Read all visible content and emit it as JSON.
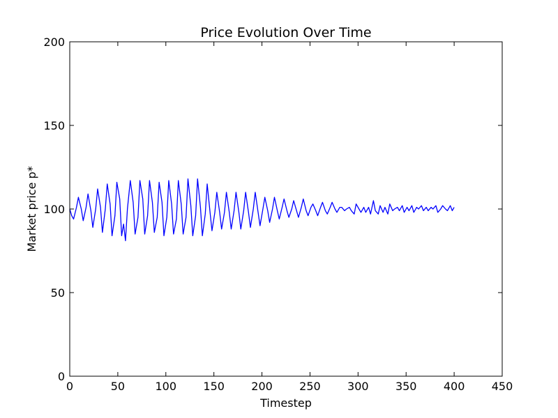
{
  "chart_data": {
    "type": "line",
    "title": "Price Evolution Over Time",
    "xlabel": "Timestep",
    "ylabel": "Market price p*",
    "xlim": [
      0,
      450
    ],
    "ylim": [
      0,
      200
    ],
    "xticks": [
      0,
      50,
      100,
      150,
      200,
      250,
      300,
      350,
      400,
      450
    ],
    "yticks": [
      0,
      50,
      100,
      150,
      200
    ],
    "grid": false,
    "legend": "none",
    "series": [
      {
        "color": "#0000ff",
        "x": [
          0,
          2,
          4,
          7,
          9,
          12,
          14,
          17,
          19,
          22,
          24,
          27,
          29,
          32,
          34,
          37,
          39,
          42,
          44,
          47,
          49,
          52,
          54,
          56,
          58,
          60,
          63,
          66,
          68,
          71,
          73,
          76,
          78,
          81,
          83,
          86,
          88,
          91,
          93,
          96,
          98,
          101,
          103,
          106,
          108,
          111,
          113,
          116,
          118,
          121,
          123,
          126,
          128,
          131,
          133,
          136,
          138,
          141,
          143,
          146,
          148,
          151,
          153,
          156,
          158,
          161,
          163,
          166,
          168,
          171,
          173,
          176,
          178,
          181,
          183,
          186,
          188,
          191,
          193,
          196,
          198,
          201,
          203,
          206,
          208,
          211,
          213,
          216,
          218,
          221,
          223,
          226,
          228,
          231,
          233,
          236,
          238,
          241,
          243,
          246,
          248,
          251,
          253,
          256,
          258,
          261,
          263,
          266,
          268,
          271,
          273,
          276,
          278,
          281,
          283,
          286,
          288,
          291,
          293,
          296,
          298,
          301,
          303,
          306,
          308,
          311,
          313,
          316,
          318,
          321,
          323,
          326,
          328,
          331,
          333,
          336,
          338,
          341,
          343,
          346,
          348,
          351,
          353,
          356,
          358,
          361,
          363,
          366,
          368,
          371,
          373,
          376,
          378,
          381,
          383,
          386,
          388,
          391,
          393,
          396,
          398,
          400
        ],
        "y": [
          100,
          96,
          94,
          101,
          107,
          100,
          93,
          101,
          109,
          99,
          89,
          100,
          112,
          101,
          86,
          100,
          115,
          103,
          84,
          96,
          116,
          106,
          84,
          91,
          81,
          100,
          117,
          104,
          85,
          95,
          117,
          106,
          85,
          96,
          117,
          104,
          86,
          95,
          116,
          104,
          84,
          95,
          117,
          103,
          85,
          94,
          117,
          103,
          85,
          95,
          118,
          102,
          84,
          96,
          118,
          101,
          84,
          97,
          115,
          98,
          87,
          98,
          110,
          98,
          88,
          98,
          110,
          98,
          88,
          99,
          110,
          98,
          88,
          99,
          110,
          98,
          89,
          100,
          110,
          98,
          90,
          100,
          107,
          99,
          92,
          100,
          107,
          99,
          94,
          101,
          106,
          99,
          95,
          100,
          105,
          99,
          95,
          101,
          106,
          99,
          96,
          101,
          103,
          99,
          96,
          101,
          104,
          99,
          97,
          101,
          104,
          100,
          98,
          101,
          101,
          99,
          100,
          101,
          99,
          97,
          103,
          100,
          98,
          101,
          98,
          101,
          97,
          105,
          99,
          97,
          102,
          98,
          101,
          97,
          103,
          99,
          100,
          101,
          99,
          102,
          98,
          101,
          99,
          102,
          98,
          101,
          100,
          102,
          99,
          101,
          99,
          101,
          100,
          102,
          98,
          100,
          102,
          100,
          99,
          102,
          99,
          101
        ]
      }
    ]
  }
}
